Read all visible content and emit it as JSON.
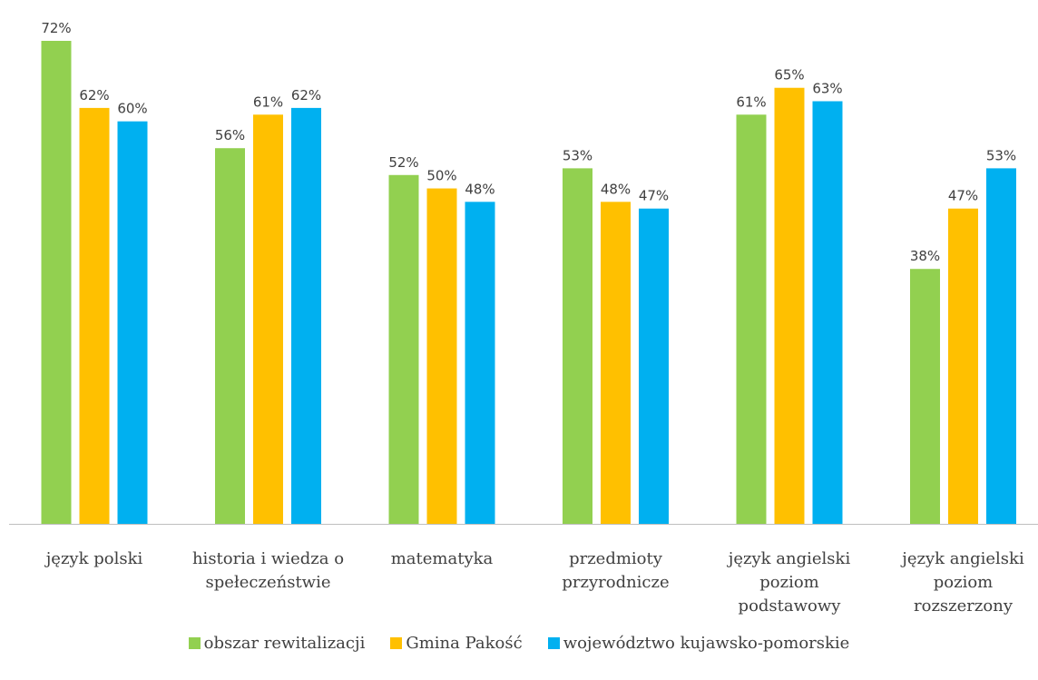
{
  "chart_data": {
    "type": "bar",
    "categories": [
      [
        "język polski"
      ],
      [
        "historia i wiedza o",
        "spełeczeństwie"
      ],
      [
        "matematyka"
      ],
      [
        "przedmioty",
        "przyrodnicze"
      ],
      [
        "język angielski",
        "poziom",
        "podstawowy"
      ],
      [
        "język angielski",
        "poziom",
        "rozszerzony"
      ]
    ],
    "series": [
      {
        "name": "obszar rewitalizacji",
        "color": "#92D050",
        "values": [
          72,
          56,
          52,
          53,
          61,
          38
        ]
      },
      {
        "name": "Gmina Pakość",
        "color": "#FFC000",
        "values": [
          62,
          61,
          50,
          48,
          65,
          47
        ]
      },
      {
        "name": "województwo kujawsko-pomorskie",
        "color": "#00B0F0",
        "values": [
          60,
          62,
          48,
          47,
          63,
          53
        ]
      }
    ],
    "value_suffix": "%",
    "ylim": [
      0,
      72
    ],
    "grid": false,
    "legend_position": "bottom"
  }
}
